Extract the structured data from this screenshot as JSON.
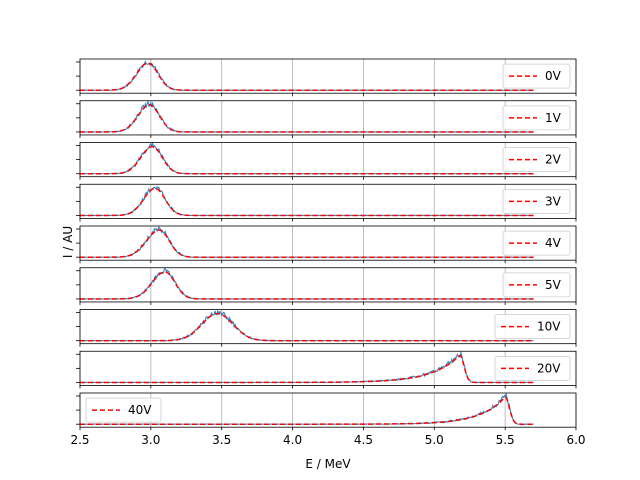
{
  "chart_data": {
    "type": "line",
    "xlabel": "E / MeV",
    "ylabel": "I / AU",
    "xlim": [
      2.5,
      6.0
    ],
    "x_ticks": [
      "2.5",
      "3.0",
      "3.5",
      "4.0",
      "4.5",
      "5.0",
      "5.5",
      "6.0"
    ],
    "grid": true,
    "y_tick_labels_visible": false,
    "data_x_range": [
      2.5,
      5.7
    ],
    "colors": {
      "data": "#1f77b4",
      "fit": "#ff0000"
    },
    "panels": [
      {
        "label": "0V",
        "peak_E": 2.98,
        "width_left": 0.08,
        "width_right": 0.07,
        "shape": "gaussian",
        "legend_position": "right"
      },
      {
        "label": "1V",
        "peak_E": 2.99,
        "width_left": 0.08,
        "width_right": 0.07,
        "shape": "gaussian",
        "legend_position": "right"
      },
      {
        "label": "2V",
        "peak_E": 3.01,
        "width_left": 0.08,
        "width_right": 0.07,
        "shape": "gaussian",
        "legend_position": "right"
      },
      {
        "label": "3V",
        "peak_E": 3.03,
        "width_left": 0.08,
        "width_right": 0.07,
        "shape": "gaussian",
        "legend_position": "right"
      },
      {
        "label": "4V",
        "peak_E": 3.06,
        "width_left": 0.09,
        "width_right": 0.07,
        "shape": "gaussian",
        "legend_position": "right"
      },
      {
        "label": "5V",
        "peak_E": 3.1,
        "width_left": 0.09,
        "width_right": 0.07,
        "shape": "gaussian",
        "legend_position": "right"
      },
      {
        "label": "10V",
        "peak_E": 3.47,
        "width_left": 0.11,
        "width_right": 0.11,
        "shape": "gaussian",
        "legend_position": "right"
      },
      {
        "label": "20V",
        "peak_E": 5.18,
        "width_left": 0.2,
        "width_right": 0.03,
        "shape": "asym_tail",
        "legend_position": "right"
      },
      {
        "label": "40V",
        "peak_E": 5.5,
        "width_left": 0.18,
        "width_right": 0.03,
        "shape": "asym_tail",
        "legend_position": "left"
      }
    ]
  }
}
